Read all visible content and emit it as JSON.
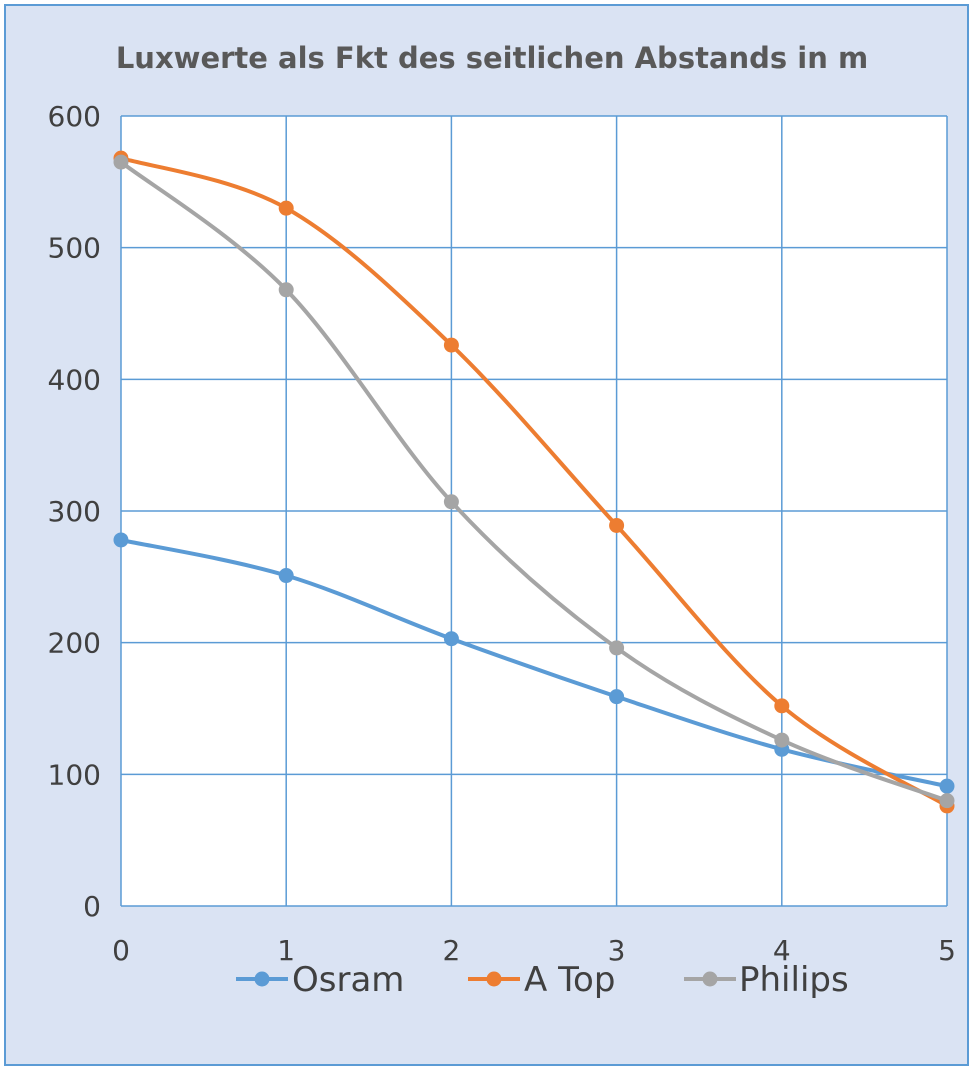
{
  "chart_data": {
    "type": "line",
    "title": "Luxwerte als Fkt des seitlichen Abstands in m",
    "x": [
      0,
      1,
      2,
      3,
      4,
      5
    ],
    "x_tick_labels": [
      "0",
      "1",
      "2",
      "3",
      "4",
      "5"
    ],
    "y_tick_labels": [
      "0",
      "100",
      "200",
      "300",
      "400",
      "500",
      "600"
    ],
    "xlim": [
      0,
      5
    ],
    "ylim": [
      0,
      600
    ],
    "grid": true,
    "smooth": true,
    "legend_position": "bottom",
    "series": [
      {
        "name": "Osram",
        "color": "#5b9bd5",
        "values": [
          278,
          251,
          203,
          159,
          119,
          91
        ]
      },
      {
        "name": "A Top",
        "color": "#ed7d31",
        "values": [
          568,
          530,
          426,
          289,
          152,
          76
        ]
      },
      {
        "name": "Philips",
        "color": "#a5a5a5",
        "values": [
          565,
          468,
          307,
          196,
          126,
          80
        ]
      }
    ]
  },
  "colors": {
    "background": "#dae3f3",
    "plot_background": "#ffffff",
    "grid": "#5b9bd5",
    "border": "#5b9bd5"
  }
}
